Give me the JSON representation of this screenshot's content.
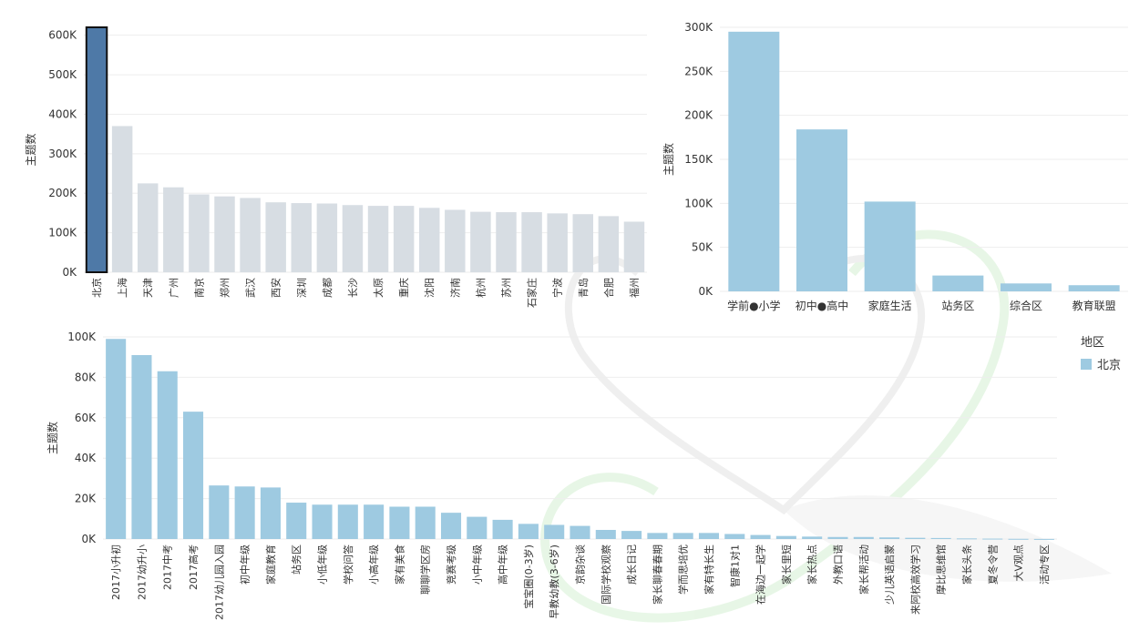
{
  "chart_data": [
    {
      "type": "bar",
      "ylabel": "主题数",
      "ylim": [
        0,
        620000
      ],
      "yticks": [
        "0K",
        "100K",
        "200K",
        "300K",
        "400K",
        "500K",
        "600K"
      ],
      "ytick_values": [
        0,
        100000,
        200000,
        300000,
        400000,
        500000,
        600000
      ],
      "categories": [
        "北京",
        "上海",
        "天津",
        "广州",
        "南京",
        "郑州",
        "武汉",
        "西安",
        "深圳",
        "成都",
        "长沙",
        "太原",
        "重庆",
        "沈阳",
        "济南",
        "杭州",
        "苏州",
        "石家庄",
        "宁波",
        "青岛",
        "合肥",
        "福州"
      ],
      "values": [
        620000,
        370000,
        225000,
        215000,
        197000,
        192000,
        188000,
        177000,
        175000,
        174000,
        170000,
        168000,
        168000,
        163000,
        158000,
        153000,
        152000,
        152000,
        149000,
        147000,
        142000,
        128000
      ],
      "highlight_index": 0,
      "colors": {
        "highlight": "#4e79a7",
        "highlight_border": "#111111",
        "muted": "#d7dde3"
      },
      "grid": true
    },
    {
      "type": "bar",
      "ylabel": "主题数",
      "ylim": [
        0,
        300000
      ],
      "yticks": [
        "0K",
        "50K",
        "100K",
        "150K",
        "200K",
        "250K",
        "300K"
      ],
      "ytick_values": [
        0,
        50000,
        100000,
        150000,
        200000,
        250000,
        300000
      ],
      "categories": [
        "学前●小学",
        "初中●高中",
        "家庭生活",
        "站务区",
        "综合区",
        "教育联盟"
      ],
      "values": [
        295000,
        184000,
        102000,
        18000,
        9000,
        7000
      ],
      "colors": {
        "bar": "#9ecae1"
      },
      "grid": true
    },
    {
      "type": "bar",
      "ylabel": "主题数",
      "ylim": [
        0,
        100000
      ],
      "yticks": [
        "0K",
        "20K",
        "40K",
        "60K",
        "80K",
        "100K"
      ],
      "ytick_values": [
        0,
        20000,
        40000,
        60000,
        80000,
        100000
      ],
      "categories": [
        "2017小升初",
        "2017幼升小",
        "2017中考",
        "2017高考",
        "2017幼儿园入园",
        "初中年级",
        "家庭教育",
        "站务区",
        "小低年级",
        "学校问答",
        "小高年级",
        "家有美食",
        "聊聊学区房",
        "竞赛考级",
        "小中年级",
        "高中年级",
        "宝宝圈(0-3岁)",
        "早教幼教(3-6岁)",
        "京韵杂谈",
        "国际学校观察",
        "成长日记",
        "家长聊春春期",
        "学而思培优",
        "家有特长生",
        "智康1对1",
        "在海边一起学",
        "家长里短",
        "家长热点",
        "外教口语",
        "家长帮活动",
        "少儿英语启蒙",
        "来阿校高效学习",
        "摩比思维馆",
        "家长头条",
        "夏冬令营",
        "大V观点",
        "活动专区"
      ],
      "values": [
        99000,
        91000,
        83000,
        63000,
        26500,
        26000,
        25500,
        18000,
        17000,
        17000,
        17000,
        16000,
        16000,
        13000,
        11000,
        9500,
        7500,
        7000,
        6500,
        4500,
        4000,
        3000,
        3000,
        3000,
        2500,
        2000,
        1500,
        1200,
        1000,
        1000,
        800,
        600,
        500,
        300,
        200,
        100,
        50
      ],
      "colors": {
        "bar": "#9ecae1"
      },
      "grid": true,
      "legend": {
        "title": "地区",
        "entries": [
          {
            "name": "北京",
            "color": "#9ecae1"
          }
        ],
        "position": "right"
      }
    }
  ]
}
